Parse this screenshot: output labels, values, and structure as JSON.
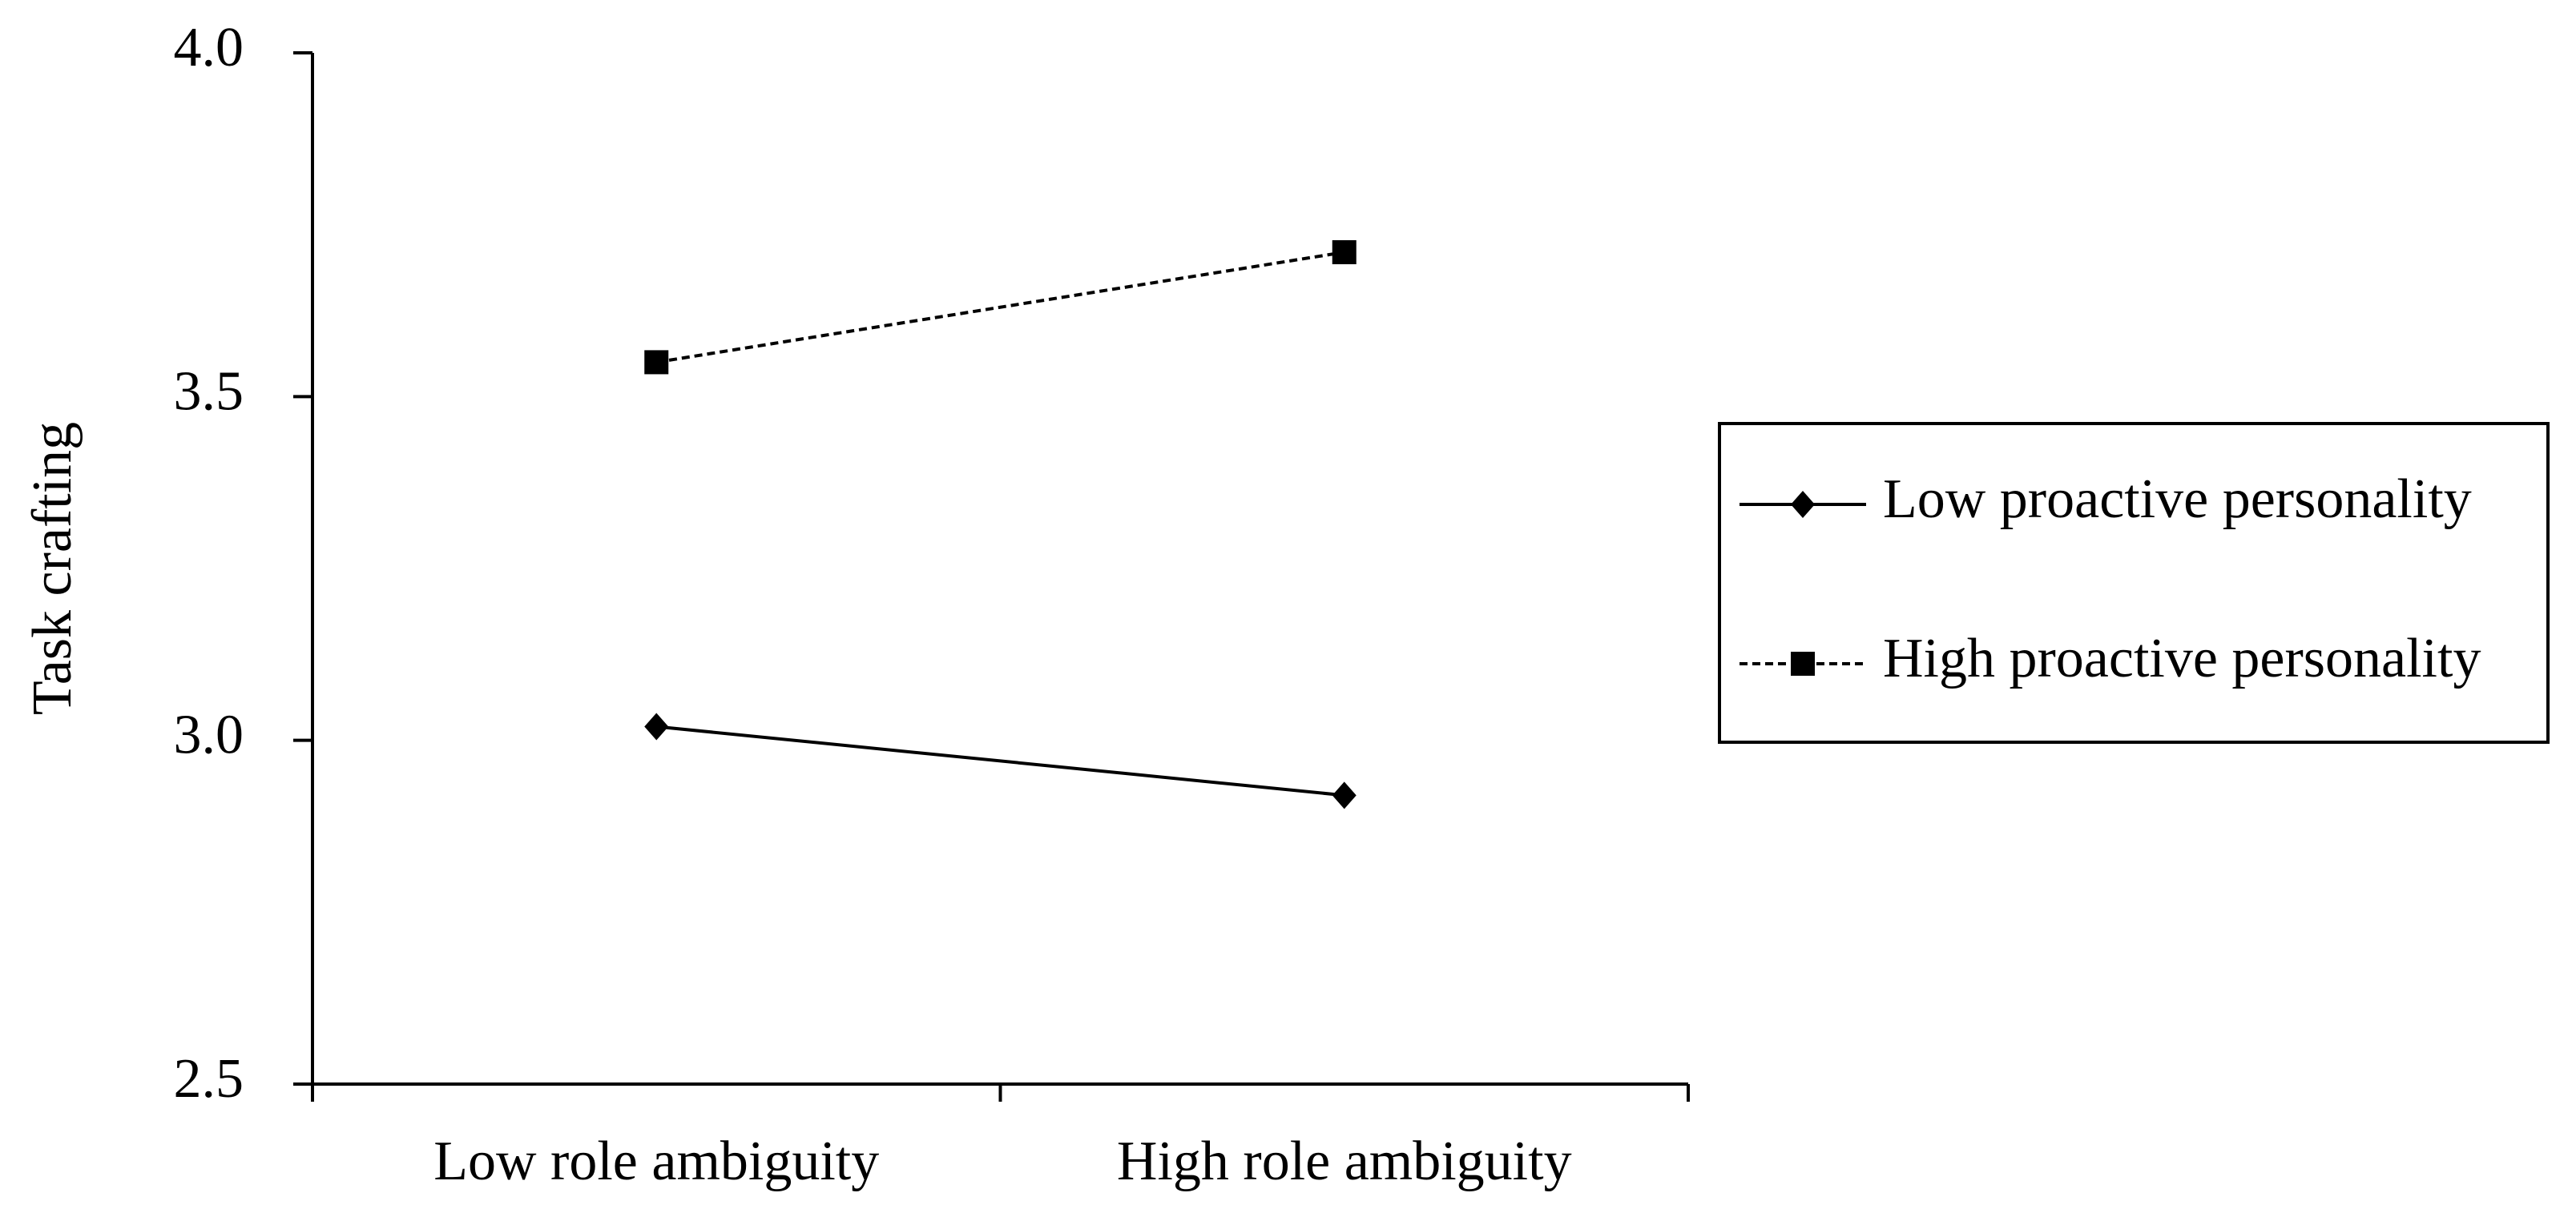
{
  "chart_data": {
    "type": "line",
    "y_label": "Task crafting",
    "categories": [
      "Low role ambiguity",
      "High role ambiguity"
    ],
    "series": [
      {
        "name": "Low proactive personality",
        "color": "#000000",
        "marker": "diamond",
        "dash": "solid",
        "values": [
          3.02,
          2.92
        ]
      },
      {
        "name": "High proactive personality",
        "color": "#000000",
        "marker": "square",
        "dash": "dashed",
        "values": [
          3.55,
          3.71
        ]
      }
    ],
    "ylim": [
      2.5,
      4.0
    ],
    "yticks": [
      {
        "value": 2.5,
        "label": "2.5"
      },
      {
        "value": 3.0,
        "label": "3.0"
      },
      3.5,
      {
        "value": 4.0,
        "label": "4.0"
      }
    ],
    "grid": false,
    "legend": "right"
  }
}
